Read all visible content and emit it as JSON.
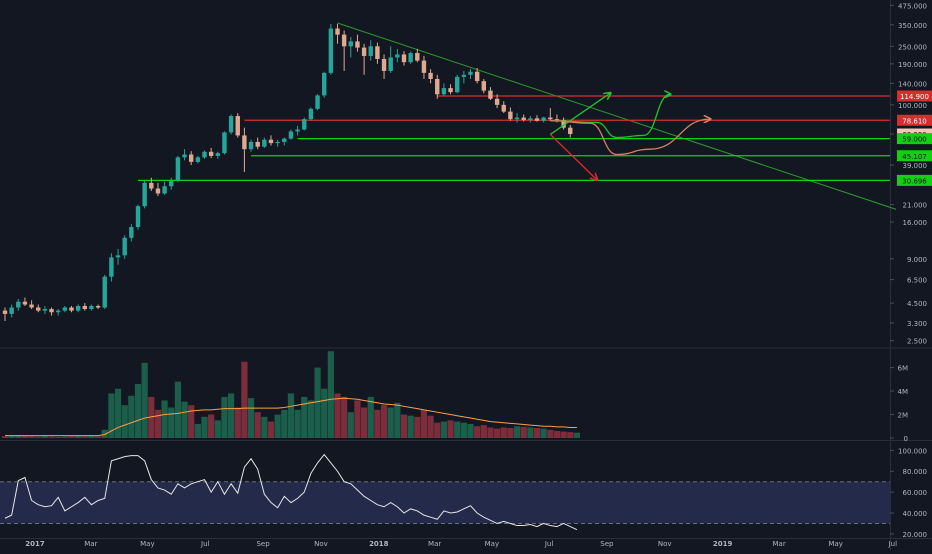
{
  "chart_data": {
    "type": "candlestick",
    "scale": "log",
    "grid": false,
    "colors": {
      "background": "#131722",
      "up": "#26a69a",
      "down": "#e0a88f",
      "volume_up": "#1b5e4a",
      "volume_down": "#7c2d3c",
      "volume_ma": "#ff9f43",
      "rsi_line": "#e6e6e6",
      "rsi_band": "#242b4a",
      "trendline": "#2e9d2e",
      "resistance": "#d32f2f",
      "support": "#12d112",
      "projection_up": "#22c22e",
      "projection_down": "#e12a2a",
      "projection_alt": "#d0835f",
      "axis_text": "#b2b5be"
    },
    "x_axis": {
      "ticks": [
        "2017",
        "Mar",
        "May",
        "Jul",
        "Sep",
        "Nov",
        "2018",
        "Mar",
        "May",
        "Jul",
        "Sep",
        "Nov",
        "2019",
        "Mar",
        "May",
        "Jul"
      ],
      "tick_weeks": [
        0,
        8.4,
        16.9,
        25.6,
        34.3,
        43.0,
        51.7,
        60.1,
        68.7,
        77.3,
        86.0,
        94.7,
        103.4,
        111.9,
        120.4,
        129.0
      ]
    },
    "price_axis": {
      "ticks": [
        "475.000",
        "350.000",
        "250.000",
        "190.000",
        "140.000",
        "100.000",
        "63.399",
        "39.000",
        "21.000",
        "16.000",
        "9.000",
        "6.500",
        "4.500",
        "3.300",
        "2.500"
      ],
      "tick_values": [
        475,
        350,
        250,
        190,
        140,
        100,
        63.399,
        39,
        21,
        16,
        9,
        6.5,
        4.5,
        3.3,
        2.5
      ],
      "range": [
        2.3,
        500
      ]
    },
    "price_labels": [
      {
        "text": "114.900",
        "value": 114.9,
        "color": "#d32f2f"
      },
      {
        "text": "78.610",
        "value": 78.61,
        "color": "#d32f2f"
      },
      {
        "text": "63.399",
        "value": 63.399,
        "color": "#f4c6ae"
      },
      {
        "text": "59.000",
        "value": 59.0,
        "color": "#12d112"
      },
      {
        "text": "45.107",
        "value": 45.107,
        "color": "#12d112"
      },
      {
        "text": "30.696",
        "value": 30.696,
        "color": "#12d112"
      }
    ],
    "horizontal_levels": [
      {
        "value": 114.9,
        "from_week": 65,
        "color": "#d32f2f"
      },
      {
        "value": 78.61,
        "from_week": 36,
        "color": "#d32f2f"
      },
      {
        "value": 59.0,
        "from_week": 44,
        "color": "#12d112"
      },
      {
        "value": 45.107,
        "from_week": 37,
        "color": "#12d112"
      },
      {
        "value": 30.696,
        "from_week": 20,
        "color": "#12d112"
      }
    ],
    "trendline": {
      "from": [
        50,
        360
      ],
      "to": [
        134,
        19.5
      ]
    },
    "projections": [
      {
        "kind": "arrow",
        "color": "#22c22e",
        "points": [
          [
            82,
            63
          ],
          [
            91,
            120
          ]
        ]
      },
      {
        "kind": "arrow",
        "color": "#e12a2a",
        "points": [
          [
            82,
            63
          ],
          [
            89,
            31
          ]
        ]
      },
      {
        "kind": "curve-arrow",
        "color": "#22c22e",
        "points": [
          [
            82,
            78
          ],
          [
            89,
            76
          ],
          [
            92,
            60
          ],
          [
            96,
            62
          ],
          [
            100,
            118
          ]
        ]
      },
      {
        "kind": "curve-arrow",
        "color": "#d0835f",
        "points": [
          [
            82,
            78
          ],
          [
            88,
            75
          ],
          [
            92,
            46
          ],
          [
            97,
            50
          ],
          [
            106,
            80
          ]
        ]
      }
    ],
    "candles": [
      [
        4.0,
        4.2,
        3.4,
        3.8
      ],
      [
        3.8,
        4.4,
        3.6,
        4.2
      ],
      [
        4.2,
        4.8,
        4.0,
        4.6
      ],
      [
        4.6,
        4.9,
        4.3,
        4.4
      ],
      [
        4.4,
        4.7,
        4.1,
        4.2
      ],
      [
        4.2,
        4.4,
        3.9,
        4.0
      ],
      [
        4.0,
        4.3,
        3.8,
        4.1
      ],
      [
        4.1,
        4.2,
        3.7,
        3.9
      ],
      [
        3.9,
        4.1,
        3.7,
        4.0
      ],
      [
        4.0,
        4.3,
        3.9,
        4.2
      ],
      [
        4.2,
        4.3,
        3.9,
        4.0
      ],
      [
        4.0,
        4.4,
        3.9,
        4.3
      ],
      [
        4.3,
        4.5,
        4.0,
        4.1
      ],
      [
        4.1,
        4.4,
        4.0,
        4.3
      ],
      [
        4.3,
        4.4,
        4.1,
        4.2
      ],
      [
        4.2,
        7.0,
        4.1,
        6.8
      ],
      [
        6.8,
        9.8,
        6.3,
        9.2
      ],
      [
        9.2,
        10.5,
        8.2,
        9.5
      ],
      [
        9.5,
        13.0,
        9.0,
        12.5
      ],
      [
        12.5,
        15.5,
        11.8,
        14.8
      ],
      [
        14.8,
        21.0,
        14.2,
        20.5
      ],
      [
        20.5,
        30.5,
        19.8,
        29.5
      ],
      [
        29.5,
        32.0,
        26.0,
        27.0
      ],
      [
        27.0,
        29.5,
        24.0,
        25.0
      ],
      [
        25.0,
        30.0,
        24.5,
        28.0
      ],
      [
        28.0,
        32.0,
        26.5,
        30.5
      ],
      [
        30.5,
        45.0,
        30.0,
        44.0
      ],
      [
        44.0,
        50.0,
        42.0,
        46.0
      ],
      [
        46.0,
        48.5,
        39.0,
        41.0
      ],
      [
        41.0,
        45.0,
        40.0,
        44.0
      ],
      [
        44.0,
        49.0,
        43.0,
        48.0
      ],
      [
        48.0,
        51.0,
        43.5,
        45.0
      ],
      [
        45.0,
        48.0,
        43.0,
        47.0
      ],
      [
        47.0,
        66.0,
        46.0,
        65.0
      ],
      [
        65.0,
        86.0,
        63.0,
        84.0
      ],
      [
        84.0,
        88.0,
        60.0,
        62.0
      ],
      [
        62.0,
        70.0,
        35.0,
        50.0
      ],
      [
        50.0,
        58.0,
        48.0,
        56.0
      ],
      [
        56.0,
        60.0,
        50.0,
        52.0
      ],
      [
        52.0,
        60.0,
        51.0,
        58.0
      ],
      [
        58.0,
        62.0,
        53.0,
        55.0
      ],
      [
        55.0,
        58.0,
        52.0,
        56.0
      ],
      [
        56.0,
        60.0,
        53.0,
        59.0
      ],
      [
        59.0,
        68.0,
        58.0,
        66.0
      ],
      [
        66.0,
        72.0,
        62.0,
        68.0
      ],
      [
        68.0,
        82.0,
        67.0,
        80.0
      ],
      [
        80.0,
        96.0,
        78.0,
        94.0
      ],
      [
        94.0,
        118.0,
        92.0,
        116.0
      ],
      [
        116.0,
        168.0,
        112.0,
        165.0
      ],
      [
        165.0,
        355.0,
        160.0,
        330.0
      ],
      [
        330.0,
        355.0,
        260.0,
        300.0
      ],
      [
        300.0,
        320.0,
        170.0,
        250.0
      ],
      [
        250.0,
        290.0,
        210.0,
        270.0
      ],
      [
        270.0,
        300.0,
        230.0,
        245.0
      ],
      [
        245.0,
        260.0,
        160.0,
        215.0
      ],
      [
        215.0,
        275.0,
        200.0,
        250.0
      ],
      [
        250.0,
        265.0,
        190.0,
        205.0
      ],
      [
        205.0,
        220.0,
        150.0,
        170.0
      ],
      [
        170.0,
        250.0,
        165.0,
        210.0
      ],
      [
        210.0,
        240.0,
        195.0,
        220.0
      ],
      [
        220.0,
        232.0,
        185.0,
        195.0
      ],
      [
        195.0,
        230.0,
        190.0,
        225.0
      ],
      [
        225.0,
        240.0,
        195.0,
        200.0
      ],
      [
        200.0,
        215.0,
        150.0,
        165.0
      ],
      [
        165.0,
        175.0,
        140.0,
        150.0
      ],
      [
        150.0,
        160.0,
        110.0,
        118.0
      ],
      [
        118.0,
        140.0,
        115.0,
        130.0
      ],
      [
        130.0,
        138.0,
        118.0,
        122.0
      ],
      [
        122.0,
        160.0,
        120.0,
        155.0
      ],
      [
        155.0,
        170.0,
        140.0,
        160.0
      ],
      [
        160.0,
        175.0,
        150.0,
        168.0
      ],
      [
        168.0,
        178.0,
        140.0,
        145.0
      ],
      [
        145.0,
        150.0,
        120.0,
        125.0
      ],
      [
        125.0,
        132.0,
        108.0,
        110.0
      ],
      [
        110.0,
        118.0,
        95.0,
        100.0
      ],
      [
        100.0,
        106.0,
        88.0,
        90.0
      ],
      [
        90.0,
        96.0,
        78.0,
        80.0
      ],
      [
        80.0,
        88.0,
        76.0,
        82.0
      ],
      [
        82.0,
        86.0,
        77.0,
        79.0
      ],
      [
        79.0,
        84.0,
        76.0,
        81.0
      ],
      [
        81.0,
        85.0,
        77.0,
        78.0
      ],
      [
        78.0,
        83.0,
        76.0,
        82.0
      ],
      [
        82.0,
        95.0,
        78.0,
        80.0
      ],
      [
        80.0,
        86.0,
        76.0,
        79.0
      ],
      [
        79.0,
        82.0,
        68.0,
        70.0
      ],
      [
        70.0,
        73.0,
        60.0,
        63.4
      ]
    ],
    "volume": {
      "axis_ticks": [
        "6M",
        "4M",
        "2M",
        "0"
      ],
      "axis_values": [
        6,
        4,
        2,
        0
      ],
      "max": 7.5,
      "values": [
        0.15,
        0.2,
        0.25,
        0.18,
        0.15,
        0.12,
        0.15,
        0.12,
        0.1,
        0.12,
        0.15,
        0.2,
        0.15,
        0.18,
        0.15,
        0.7,
        3.8,
        4.2,
        2.8,
        3.6,
        4.6,
        6.4,
        3.5,
        2.4,
        3.2,
        2.6,
        4.8,
        3.1,
        2.8,
        1.2,
        1.8,
        2.0,
        1.5,
        3.5,
        3.8,
        2.6,
        6.5,
        3.4,
        2.2,
        1.8,
        1.4,
        2.0,
        2.4,
        3.8,
        2.4,
        3.5,
        3.2,
        6.0,
        4.2,
        7.4,
        3.8,
        3.5,
        2.2,
        3.2,
        2.6,
        3.5,
        2.4,
        2.8,
        2.6,
        3.0,
        2.0,
        1.9,
        1.8,
        2.4,
        1.9,
        1.3,
        1.4,
        1.5,
        1.4,
        1.3,
        1.2,
        1.0,
        1.1,
        0.9,
        0.8,
        0.9,
        0.85,
        1.0,
        0.95,
        0.9,
        0.85,
        0.8,
        0.7,
        0.6,
        0.55,
        0.5,
        0.45
      ],
      "ma": [
        0.2,
        0.2,
        0.2,
        0.2,
        0.2,
        0.2,
        0.2,
        0.2,
        0.2,
        0.2,
        0.2,
        0.2,
        0.2,
        0.2,
        0.2,
        0.3,
        0.6,
        0.9,
        1.1,
        1.3,
        1.5,
        1.7,
        1.8,
        1.9,
        2.0,
        2.05,
        2.1,
        2.2,
        2.3,
        2.35,
        2.4,
        2.4,
        2.45,
        2.5,
        2.5,
        2.5,
        2.55,
        2.55,
        2.55,
        2.55,
        2.55,
        2.55,
        2.6,
        2.7,
        2.8,
        2.9,
        3.0,
        3.1,
        3.2,
        3.3,
        3.35,
        3.4,
        3.35,
        3.3,
        3.2,
        3.1,
        3.0,
        2.9,
        2.85,
        2.8,
        2.7,
        2.6,
        2.5,
        2.4,
        2.3,
        2.2,
        2.1,
        2.0,
        1.9,
        1.8,
        1.7,
        1.6,
        1.5,
        1.4,
        1.35,
        1.3,
        1.25,
        1.2,
        1.15,
        1.1,
        1.05,
        1.0,
        1.0,
        0.95,
        0.95,
        0.9,
        0.9
      ]
    },
    "rsi": {
      "axis_ticks": [
        "100.000",
        "80.000",
        "60.000",
        "40.000",
        "20.000"
      ],
      "axis_values": [
        100,
        80,
        60,
        40,
        20
      ],
      "range": [
        18,
        108
      ],
      "upper_band": 70,
      "lower_band": 30,
      "values": [
        35,
        38,
        71,
        74,
        52,
        48,
        46,
        47,
        55,
        42,
        46,
        50,
        55,
        48,
        52,
        54,
        90,
        92,
        94,
        95,
        95,
        90,
        72,
        64,
        62,
        58,
        68,
        64,
        68,
        70,
        72,
        60,
        70,
        58,
        68,
        59,
        84,
        92,
        82,
        58,
        50,
        45,
        56,
        50,
        54,
        60,
        78,
        88,
        96,
        88,
        80,
        70,
        68,
        62,
        56,
        52,
        48,
        46,
        50,
        46,
        40,
        44,
        42,
        38,
        36,
        34,
        42,
        40,
        41,
        44,
        47,
        40,
        36,
        33,
        30,
        32,
        30,
        28,
        28,
        29,
        27,
        30,
        28,
        27,
        30,
        27,
        24
      ]
    }
  }
}
